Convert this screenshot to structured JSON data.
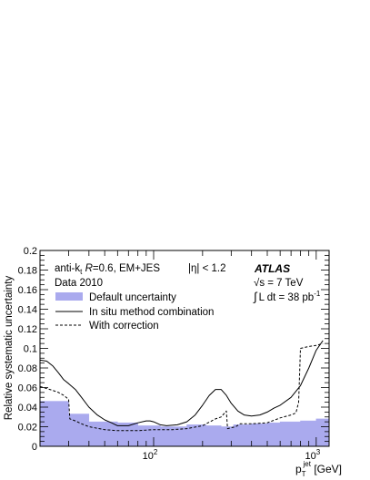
{
  "chart_data": {
    "type": "line",
    "xscale": "log",
    "xlim": [
      20,
      1200
    ],
    "ylim": [
      0,
      0.2
    ],
    "xlabel": {
      "main": "p",
      "sup": "jet",
      "sub": "T",
      "unit": " [GeV]"
    },
    "ylabel": "Relative systematic uncertainty",
    "yticks": [
      "0",
      "0.02",
      "0.04",
      "0.06",
      "0.08",
      "0.1",
      "0.12",
      "0.14",
      "0.16",
      "0.18",
      "0.2"
    ],
    "xtick_labels": [
      {
        "value": 100,
        "base": "10",
        "exp": "2"
      },
      {
        "value": 1000,
        "base": "10",
        "exp": "3"
      }
    ],
    "annotations": {
      "line1": "anti-k",
      "line1_sub": "t",
      "line1_R": "R",
      "line1_rest": "=0.6, EM+JES",
      "eta": "|η| < 1.2",
      "data": "Data 2010",
      "atlas": "ATLAS",
      "sqrt_sym": "√",
      "sqrt_s": "s = 7 TeV",
      "lumi_int": "∫",
      "lumi_text": "L dt = 38 pb",
      "lumi_exp": "-1"
    },
    "legend": {
      "position": "top-left",
      "entries": [
        {
          "label": "Default uncertainty",
          "style": "fill"
        },
        {
          "label": "In situ method combination",
          "style": "solid"
        },
        {
          "label": "With correction",
          "style": "dashed"
        }
      ]
    },
    "series": [
      {
        "name": "Default uncertainty",
        "style": "step-fill",
        "color": "#aaaaee",
        "bins": [
          {
            "x0": 20,
            "x1": 30,
            "y": 0.046
          },
          {
            "x0": 30,
            "x1": 40,
            "y": 0.033
          },
          {
            "x0": 40,
            "x1": 60,
            "y": 0.025
          },
          {
            "x0": 60,
            "x1": 80,
            "y": 0.024
          },
          {
            "x0": 80,
            "x1": 110,
            "y": 0.021
          },
          {
            "x0": 110,
            "x1": 160,
            "y": 0.02
          },
          {
            "x0": 160,
            "x1": 210,
            "y": 0.022
          },
          {
            "x0": 210,
            "x1": 260,
            "y": 0.021
          },
          {
            "x0": 260,
            "x1": 310,
            "y": 0.02
          },
          {
            "x0": 310,
            "x1": 400,
            "y": 0.022
          },
          {
            "x0": 400,
            "x1": 500,
            "y": 0.023
          },
          {
            "x0": 500,
            "x1": 600,
            "y": 0.024
          },
          {
            "x0": 600,
            "x1": 800,
            "y": 0.025
          },
          {
            "x0": 800,
            "x1": 1000,
            "y": 0.026
          },
          {
            "x0": 1000,
            "x1": 1200,
            "y": 0.028
          }
        ]
      },
      {
        "name": "In situ method combination",
        "style": "solid",
        "color": "#000000",
        "x": [
          20,
          22,
          24,
          26,
          28,
          30,
          33,
          36,
          40,
          45,
          50,
          55,
          60,
          70,
          80,
          90,
          95,
          100,
          110,
          120,
          140,
          160,
          180,
          200,
          220,
          240,
          260,
          280,
          300,
          330,
          360,
          400,
          450,
          500,
          550,
          600,
          700,
          800,
          900,
          1000,
          1100
        ],
        "y": [
          0.088,
          0.087,
          0.082,
          0.075,
          0.068,
          0.064,
          0.058,
          0.05,
          0.04,
          0.032,
          0.027,
          0.024,
          0.021,
          0.021,
          0.024,
          0.026,
          0.026,
          0.025,
          0.022,
          0.021,
          0.022,
          0.025,
          0.032,
          0.042,
          0.052,
          0.058,
          0.058,
          0.052,
          0.044,
          0.036,
          0.032,
          0.031,
          0.032,
          0.035,
          0.039,
          0.042,
          0.05,
          0.062,
          0.08,
          0.098,
          0.108
        ]
      },
      {
        "name": "With correction",
        "style": "dashed",
        "color": "#000000",
        "x": [
          20,
          22,
          24,
          26,
          28,
          30,
          30.5,
          33,
          36,
          40,
          50,
          60,
          80,
          100,
          130,
          160,
          200,
          240,
          260,
          280,
          285,
          300,
          320,
          340,
          400,
          500,
          600,
          700,
          750,
          780,
          800,
          850,
          900,
          1000,
          1100
        ],
        "y": [
          0.061,
          0.059,
          0.057,
          0.055,
          0.052,
          0.048,
          0.028,
          0.026,
          0.023,
          0.02,
          0.017,
          0.016,
          0.016,
          0.017,
          0.017,
          0.018,
          0.021,
          0.028,
          0.03,
          0.036,
          0.018,
          0.019,
          0.02,
          0.023,
          0.023,
          0.024,
          0.029,
          0.032,
          0.034,
          0.045,
          0.1,
          0.101,
          0.102,
          0.103,
          0.105
        ]
      }
    ]
  }
}
